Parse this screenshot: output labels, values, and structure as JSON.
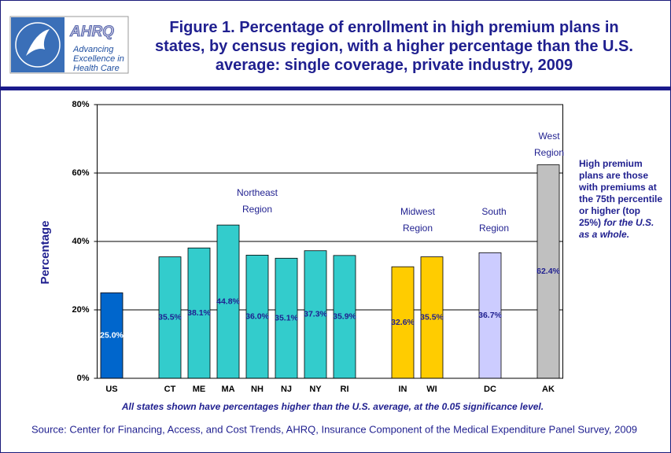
{
  "chart_data": {
    "type": "bar",
    "title": "Figure 1. Percentage of enrollment in high premium plans in states, by census region, with a higher percentage than the U.S. average: single coverage, private industry, 2009",
    "y_label": "Percentage",
    "categories": [
      "US",
      null,
      "CT",
      "ME",
      "MA",
      "NH",
      "NJ",
      "NY",
      "RI",
      null,
      "IN",
      "WI",
      null,
      "DC",
      null,
      "AK"
    ],
    "values": [
      25.0,
      null,
      35.5,
      38.1,
      44.8,
      36.0,
      35.1,
      37.3,
      35.9,
      null,
      32.6,
      35.5,
      null,
      36.7,
      null,
      62.4
    ],
    "value_labels": [
      "25.0%",
      null,
      "35.5%",
      "38.1%",
      "44.8%",
      "36.0%",
      "35.1%",
      "37.3%",
      "35.9%",
      null,
      "32.6%",
      "35.5%",
      null,
      "36.7%",
      null,
      "62.4%"
    ],
    "colors": [
      "#0066cc",
      null,
      "#33cccc",
      "#33cccc",
      "#33cccc",
      "#33cccc",
      "#33cccc",
      "#33cccc",
      "#33cccc",
      null,
      "#ffcc00",
      "#ffcc00",
      null,
      "#ccccff",
      null,
      "#c0c0c0"
    ],
    "ylim": [
      0,
      80
    ],
    "yticks": [
      {
        "value": 0,
        "label": "0%"
      },
      {
        "value": 20,
        "label": "20%"
      },
      {
        "value": 40,
        "label": "40%"
      },
      {
        "value": 60,
        "label": "60%"
      },
      {
        "value": 80,
        "label": "80%"
      }
    ],
    "grid": true,
    "region_labels": [
      [
        "Northeast",
        "Region"
      ],
      [
        "Midwest",
        "Region"
      ],
      [
        "South",
        "Region"
      ],
      [
        "West",
        "Region"
      ]
    ],
    "note": "High premium plans are those with premiums at the 75th percentile or higher (top 25%)",
    "note_italic": "for the U.S. as a whole.",
    "footnote": "All states shown have percentages higher than the U.S. average, at the 0.05 significance level.",
    "source": "Source: Center for Financing, Access, and Cost Trends, AHRQ, Insurance Component of the Medical Expenditure Panel Survey, 2009"
  },
  "logo": {
    "name": "AHRQ",
    "tagline": [
      "Advancing",
      "Excellence in",
      "Health Care"
    ]
  }
}
